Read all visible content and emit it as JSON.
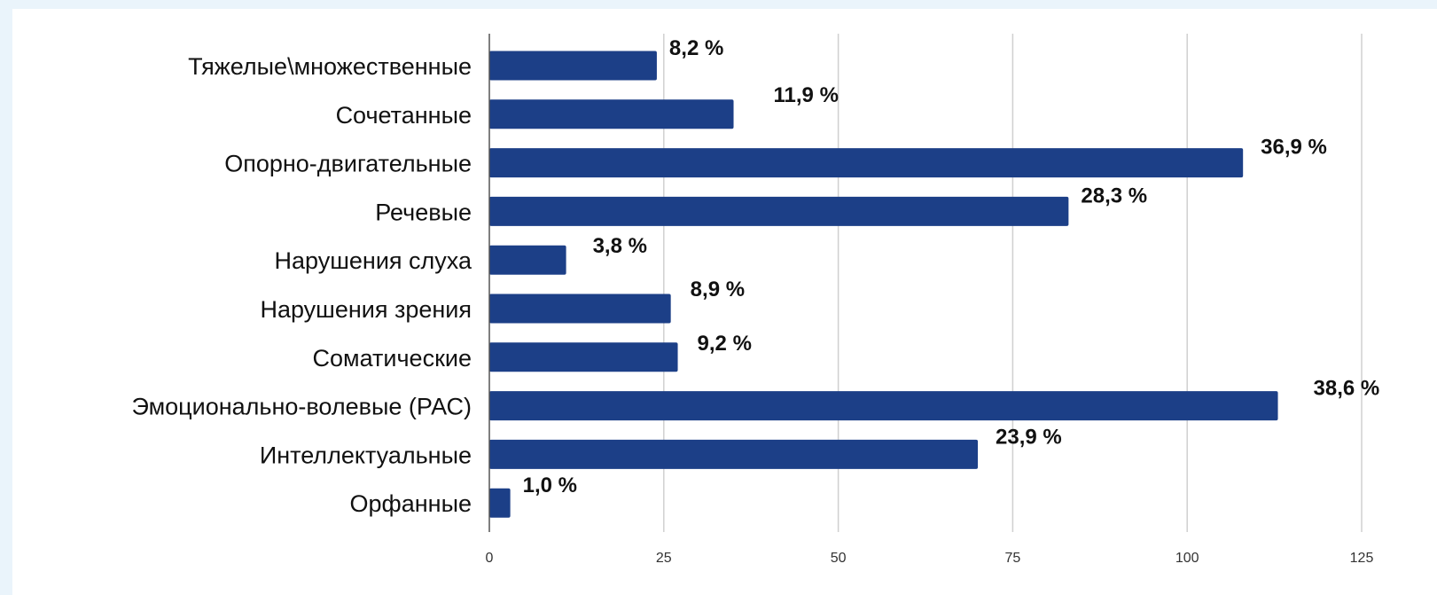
{
  "chart_data": {
    "type": "bar",
    "orientation": "horizontal",
    "title": "",
    "xlabel": "",
    "ylabel": "",
    "categories": [
      "Тяжелые\\множественные",
      "Сочетанные",
      "Опорно-двигательные",
      "Речевые",
      "Нарушения слуха",
      "Нарушения зрения",
      "Соматические",
      "Эмоционально-волевые (РАС)",
      "Интеллектуальные",
      "Орфанные"
    ],
    "values": [
      24,
      35,
      108,
      83,
      11,
      26,
      27,
      113,
      70,
      3
    ],
    "data_labels": [
      "8,2 %",
      "11,9 %",
      "36,9 %",
      "28,3 %",
      "3,8 %",
      "8,9 %",
      "9,2 %",
      "38,6 %",
      "23,9 %",
      "1,0 %"
    ],
    "xlim": [
      0,
      125
    ],
    "x_ticks": [
      0,
      25,
      50,
      75,
      100,
      125
    ],
    "x_tick_labels": [
      "0",
      "25",
      "50",
      "75",
      "100",
      "125"
    ],
    "grid": "vertical",
    "legend": "none",
    "bar_color": "#1c3f87",
    "grid_color": "#d0d0d0"
  }
}
